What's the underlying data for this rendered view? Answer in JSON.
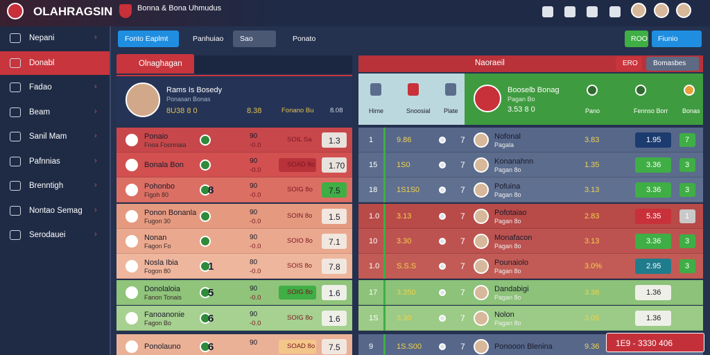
{
  "topbar": {
    "logo": "OLAHRAGSIN",
    "subtitle": "Bonna & Bona Uhmudus"
  },
  "sidebar": [
    {
      "label": "Nepani"
    },
    {
      "label": "Donabl"
    },
    {
      "label": "Fadao"
    },
    {
      "label": "Beam"
    },
    {
      "label": "Sanil Mam"
    },
    {
      "label": "Pafnnias"
    },
    {
      "label": "Brenntigh"
    },
    {
      "label": "Nontao Semag"
    },
    {
      "label": "Serodauei"
    }
  ],
  "toolbar": {
    "tabs": [
      "Fonto Eaplmt",
      "Panhuiao",
      "Sao",
      "Ponato"
    ],
    "actions": [
      "ROO",
      "Fiunio"
    ]
  },
  "left_panel": {
    "title": "Olnaghagan",
    "profile": {
      "name": "Rams Is Bosedy",
      "sub": "Ponasan Bonas",
      "stats": "8U38 8 0",
      "mid": "8.38",
      "badge": "Fonano Bu",
      "side": "8.08"
    },
    "rows": [
      {
        "name": "Ponaio",
        "sub": "Fnoa Foonnaia",
        "s1": "90",
        "s2": "-0.0",
        "tag": "SOIL Sa",
        "odds": "1.3",
        "color": "#c8474b",
        "odds_color": "#e8e2dc"
      },
      {
        "name": "Bonala Bon",
        "s1": "90",
        "s2": "-0.0",
        "tag": "SOAD 8o",
        "odds": "1.70",
        "color": "#d2504f",
        "tag_color": "#b8323a",
        "odds_color": "#e8e2dc"
      },
      {
        "name": "Pohonbo",
        "sub": "Figoh 80",
        "score": "8",
        "s1": "90",
        "s2": "-0.0",
        "tag": "SOIG 8o",
        "odds": "7.5",
        "color": "#dc6f63",
        "odds_color": "#3fae45"
      },
      {
        "name": "Ponon Bonanla",
        "sub": "Fugon 30",
        "s1": "90",
        "s2": "-0.0",
        "tag": "SOIN 8o",
        "odds": "1.5",
        "color": "#e59a80",
        "odds_color": "#f1e7df"
      },
      {
        "name": "Nonan",
        "sub": "Fagon Fo",
        "s1": "90",
        "s2": "-0.0",
        "tag": "SOIO 8o",
        "odds": "7.1",
        "color": "#eaa88e",
        "odds_color": "#f1e7df"
      },
      {
        "name": "Nosla Ibia",
        "sub": "Fogon 80",
        "score": "1",
        "s1": "80",
        "s2": "-0.0",
        "tag": "SOIS 8o",
        "odds": "7.8",
        "color": "#eeb69c",
        "odds_color": "#f1e7df"
      },
      {
        "name": "Donolaloia",
        "sub": "Fanon Tonais",
        "score": "5",
        "s1": "90",
        "s2": "-0.0",
        "tag": "SOIG 8o",
        "odds": "1.6",
        "color": "#8fc47a",
        "tag_color": "#3fae45",
        "odds_color": "#eef0e8"
      },
      {
        "name": "Fanoanonie",
        "sub": "Fagon Bo",
        "score": "6",
        "s1": "90",
        "s2": "-0.0",
        "tag": "SOIG 8o",
        "odds": "1.6",
        "color": "#a6d190",
        "odds_color": "#eef0e8"
      },
      {
        "name": "Ponolauno",
        "score": "6",
        "s1": "90",
        "tag": "SOAD 8o",
        "odds": "7.5",
        "color": "#eab196",
        "tag_color": "#f3c68a",
        "odds_color": "#f1e7df"
      }
    ]
  },
  "right_panel": {
    "title": "Naoraeil",
    "buttons": [
      "ERO",
      "Bomasbes"
    ],
    "card": {
      "labels": [
        "Hime",
        "Snoosial",
        "Plate"
      ],
      "name": "Booselb Bonag",
      "sub": "Pagan Bo",
      "stats": "3.53 8 0",
      "items": [
        "Pano",
        "Fennso Borr",
        "Bonas"
      ]
    },
    "rows": [
      {
        "rank": "1",
        "code": "9.86",
        "n": "7",
        "name": "Nofonal",
        "sub": "Pagala",
        "stat": "3.83",
        "odds": "1.95",
        "small": "7",
        "color": "#56678a",
        "odds_color": "#1c3b6e",
        "small_color": "#3fae45"
      },
      {
        "rank": "15",
        "code": "1S0",
        "n": "7",
        "name": "Konanahnn",
        "sub": "Pagan 8o",
        "stat": "1.35",
        "odds": "3.36",
        "small": "3",
        "color": "#5b6c8c",
        "odds_color": "#3fae45",
        "small_color": "#3fae45"
      },
      {
        "rank": "18",
        "code": "1S1S0",
        "n": "7",
        "name": "Pofuina",
        "sub": "Pagan 8o",
        "stat": "3.13",
        "odds": "3.36",
        "small": "3",
        "color": "#607090",
        "odds_color": "#3fae45",
        "small_color": "#3fae45"
      },
      {
        "rank": "1.0",
        "code": "3.13",
        "n": "7",
        "name": "Pofotaiao",
        "sub": "Pagan 8o",
        "stat": "2.83",
        "odds": "5.35",
        "small": "1",
        "color": "#b84a48",
        "odds_color": "#c8303a",
        "small_color": "#c9c9c9"
      },
      {
        "rank": "10",
        "code": "3.30",
        "n": "7",
        "name": "Monafacon",
        "sub": "Pagan 8o",
        "stat": "3.13",
        "odds": "3.36",
        "small": "3",
        "color": "#bd5350",
        "odds_color": "#3fae45",
        "small_color": "#3fae45"
      },
      {
        "rank": "1.0",
        "code": "S.S.S",
        "n": "7",
        "name": "Pounaiolo",
        "sub": "Pagan 8o",
        "stat": "3.0%",
        "odds": "2.95",
        "small": "3",
        "color": "#c25b55",
        "odds_color": "#1f7c8c",
        "small_color": "#3fae45"
      },
      {
        "rank": "17",
        "code": "3.350",
        "n": "7",
        "name": "Dandabigi",
        "sub": "Pagan 8o",
        "stat": "3.36",
        "odds": "1.36",
        "color": "#8cc279",
        "odds_color": "#eef0e8"
      },
      {
        "rank": "1S",
        "code": "3.30",
        "n": "7",
        "name": "Nolon",
        "sub": "Pagan 8o",
        "stat": "3.05",
        "odds": "1.36",
        "color": "#9bcb86",
        "odds_color": "#eef0e8"
      },
      {
        "rank": "9",
        "code": "1S.S00",
        "n": "7",
        "name": "Ponooon Blenina",
        "stat": "9.36",
        "color": "#56678a"
      }
    ]
  },
  "ticker": "1E9 - 3330 406"
}
